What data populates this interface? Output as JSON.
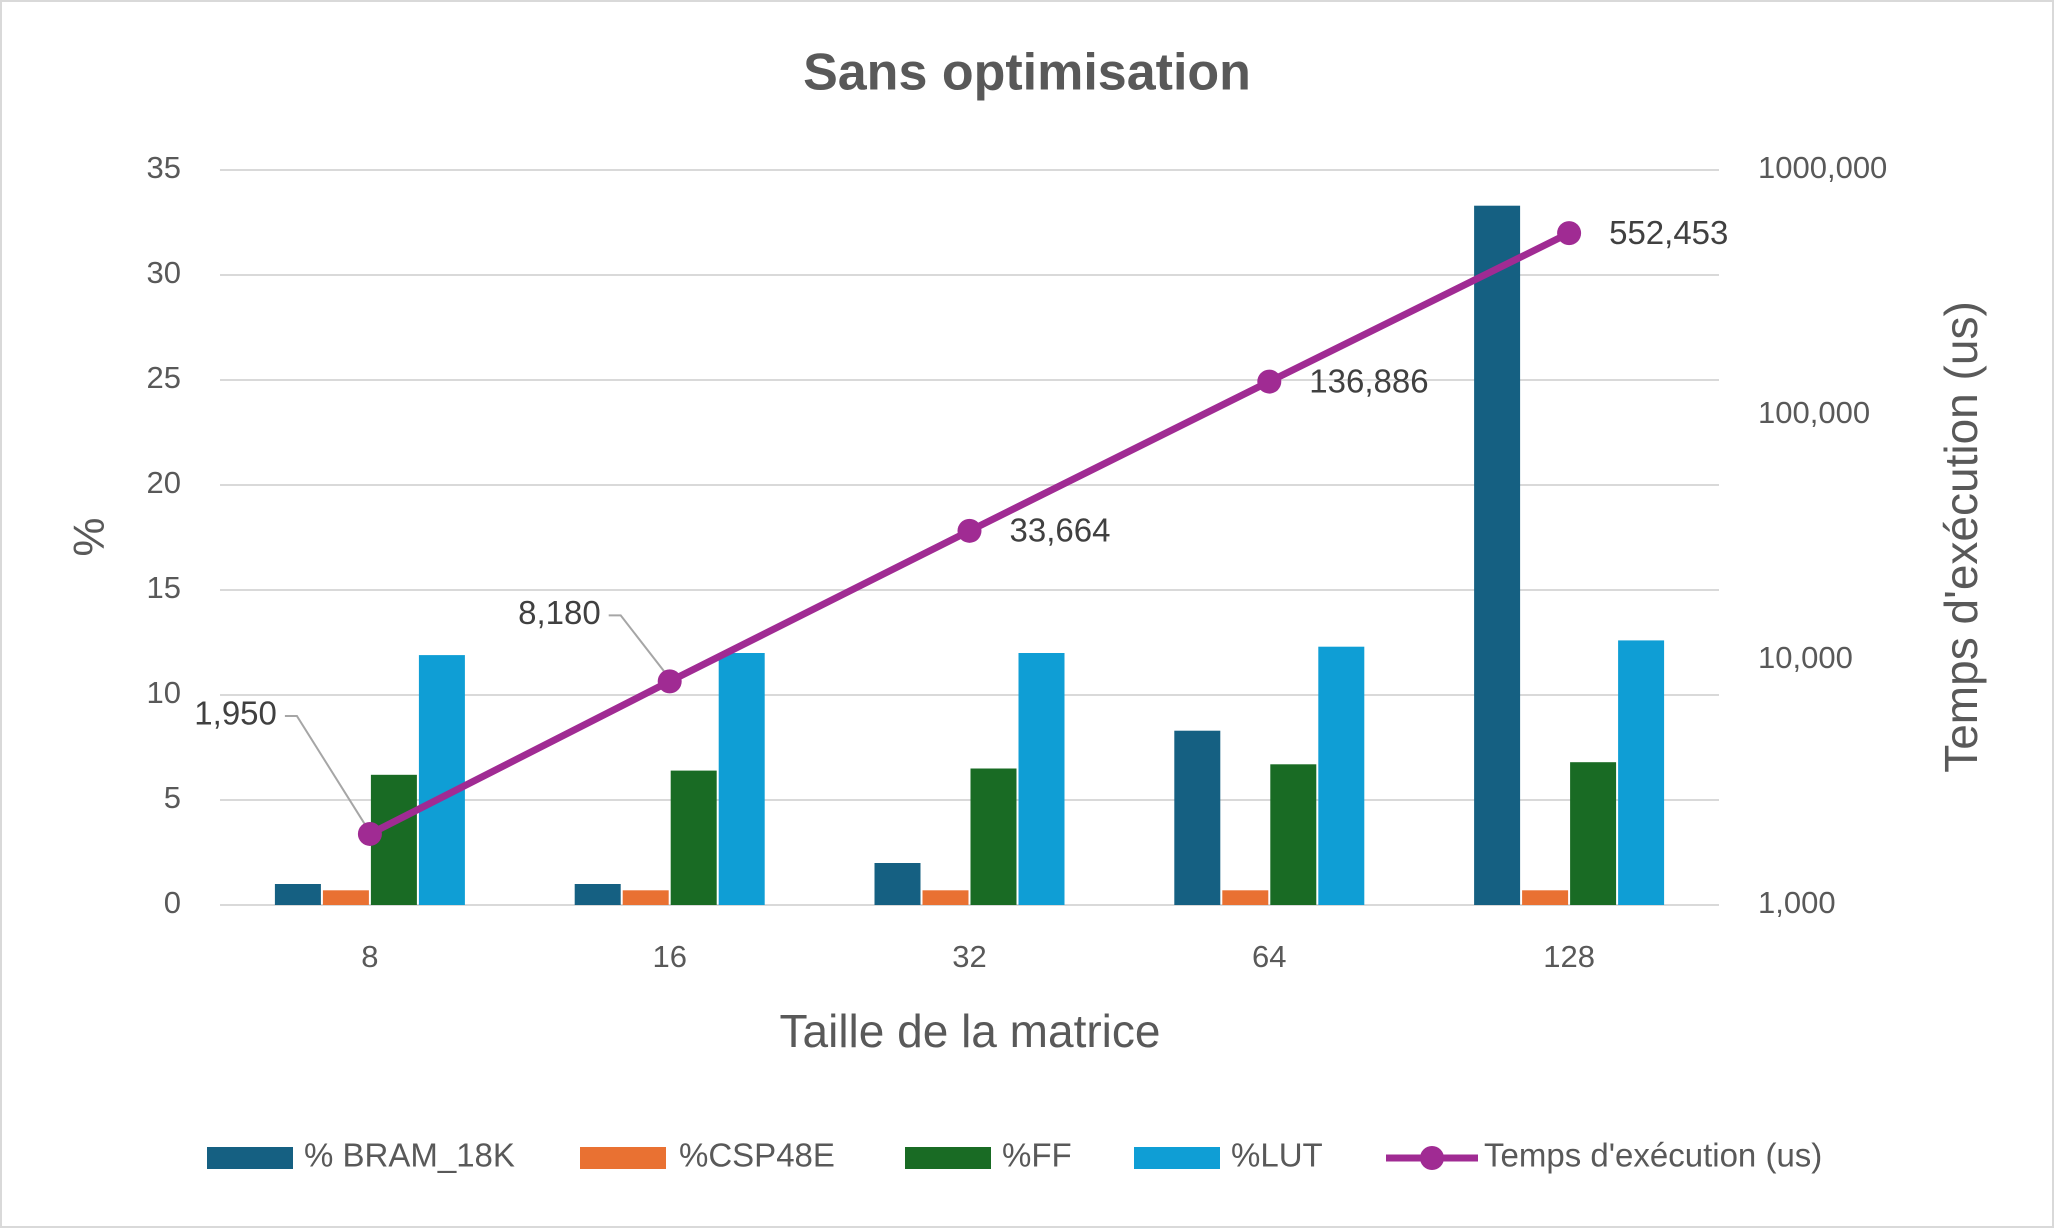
{
  "chart_data": {
    "type": "bar",
    "title": "Sans optimisation",
    "x_label": "Taille de la matrice",
    "y_label": "%",
    "y2_label": "Temps d'exécution (us)",
    "categories": [
      "8",
      "16",
      "32",
      "64",
      "128"
    ],
    "ylim": [
      0,
      35
    ],
    "yticks": [
      0,
      5,
      10,
      15,
      20,
      25,
      30,
      35
    ],
    "y2lim": [
      1000,
      1000000
    ],
    "y2scale": "log",
    "y2ticks": [
      {
        "value": 1000,
        "label": "1,000"
      },
      {
        "value": 10000,
        "label": "10,000"
      },
      {
        "value": 100000,
        "label": "100,000"
      },
      {
        "value": 1000000,
        "label": "1000,000"
      }
    ],
    "grid": true,
    "legend": "bottom",
    "series": [
      {
        "name": "% BRAM_18K",
        "color": "#156082",
        "values": [
          1,
          1,
          2,
          8.3,
          33.3
        ]
      },
      {
        "name": "%CSP48E",
        "color": "#e97132",
        "values": [
          0.7,
          0.7,
          0.7,
          0.7,
          0.7
        ]
      },
      {
        "name": "%FF",
        "color": "#196b24",
        "values": [
          6.2,
          6.4,
          6.5,
          6.7,
          6.8
        ]
      },
      {
        "name": "%LUT",
        "color": "#0f9ed5",
        "values": [
          11.9,
          12,
          12,
          12.3,
          12.6
        ]
      },
      {
        "name": "Temps d'exécution (us)",
        "color": "#a02b93",
        "type": "line",
        "axis": "y2",
        "values": [
          1950,
          8180,
          33664,
          136886,
          552453
        ],
        "value_labels": [
          "1,950",
          "8,180",
          "33,664",
          "136,886",
          "552,453"
        ]
      }
    ]
  }
}
